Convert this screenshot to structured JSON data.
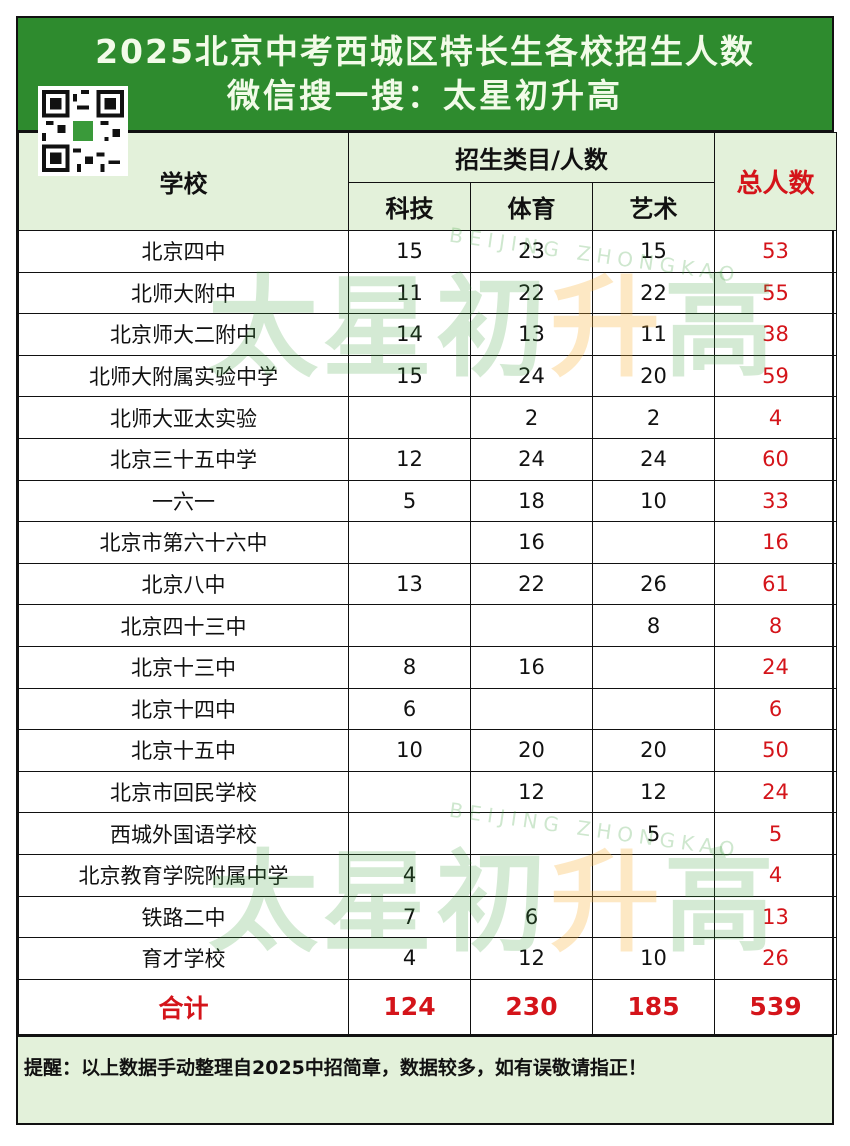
{
  "title": {
    "line1": "2025北京中考西城区特长生各校招生人数",
    "line2": "微信搜一搜：太星初升高"
  },
  "watermark": {
    "text": "太星初升高",
    "sub": "BEIJING ZHONGKAO"
  },
  "header": {
    "school": "学校",
    "category_group": "招生类目/人数",
    "categories": [
      "科技",
      "体育",
      "艺术"
    ],
    "total": "总人数"
  },
  "colors": {
    "title_bg": "#2e8b2e",
    "header_bg": "#e3f1da",
    "total_red": "#d4141a"
  },
  "rows": [
    {
      "school": "北京四中",
      "tech": "15",
      "sports": "23",
      "art": "15",
      "total": "53"
    },
    {
      "school": "北师大附中",
      "tech": "11",
      "sports": "22",
      "art": "22",
      "total": "55"
    },
    {
      "school": "北京师大二附中",
      "tech": "14",
      "sports": "13",
      "art": "11",
      "total": "38"
    },
    {
      "school": "北师大附属实验中学",
      "tech": "15",
      "sports": "24",
      "art": "20",
      "total": "59"
    },
    {
      "school": "北师大亚太实验",
      "tech": "",
      "sports": "2",
      "art": "2",
      "total": "4"
    },
    {
      "school": "北京三十五中学",
      "tech": "12",
      "sports": "24",
      "art": "24",
      "total": "60"
    },
    {
      "school": "一六一",
      "tech": "5",
      "sports": "18",
      "art": "10",
      "total": "33"
    },
    {
      "school": "北京市第六十六中",
      "tech": "",
      "sports": "16",
      "art": "",
      "total": "16"
    },
    {
      "school": "北京八中",
      "tech": "13",
      "sports": "22",
      "art": "26",
      "total": "61"
    },
    {
      "school": "北京四十三中",
      "tech": "",
      "sports": "",
      "art": "8",
      "total": "8"
    },
    {
      "school": "北京十三中",
      "tech": "8",
      "sports": "16",
      "art": "",
      "total": "24"
    },
    {
      "school": "北京十四中",
      "tech": "6",
      "sports": "",
      "art": "",
      "total": "6"
    },
    {
      "school": "北京十五中",
      "tech": "10",
      "sports": "20",
      "art": "20",
      "total": "50"
    },
    {
      "school": "北京市回民学校",
      "tech": "",
      "sports": "12",
      "art": "12",
      "total": "24"
    },
    {
      "school": "西城外国语学校",
      "tech": "",
      "sports": "",
      "art": "5",
      "total": "5"
    },
    {
      "school": "北京教育学院附属中学",
      "tech": "4",
      "sports": "",
      "art": "",
      "total": "4"
    },
    {
      "school": "铁路二中",
      "tech": "7",
      "sports": "6",
      "art": "",
      "total": "13"
    },
    {
      "school": "育才学校",
      "tech": "4",
      "sports": "12",
      "art": "10",
      "total": "26"
    }
  ],
  "sum": {
    "label": "合计",
    "tech": "124",
    "sports": "230",
    "art": "185",
    "total": "539"
  },
  "note": "提醒：以上数据手动整理自2025中招简章，数据较多，如有误敬请指正！"
}
